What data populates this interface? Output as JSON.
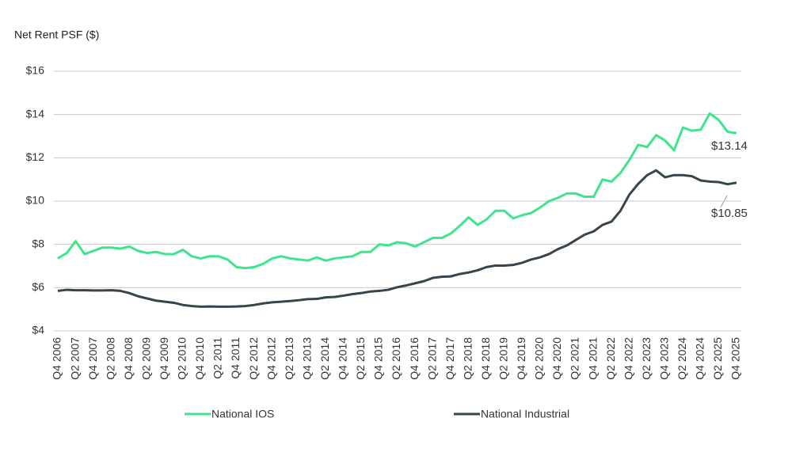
{
  "chart_data": {
    "type": "line",
    "y_label": "Net Rent PSF ($)",
    "categories": [
      "Q4 2006",
      null,
      "Q2 2007",
      null,
      "Q4 2007",
      null,
      "Q2 2008",
      null,
      "Q4 2008",
      null,
      "Q2 2009",
      null,
      "Q4 2009",
      null,
      "Q2 2010",
      null,
      "Q4 2010",
      null,
      "Q2 2011",
      null,
      "Q4 2011",
      null,
      "Q2 2012",
      null,
      "Q4 2012",
      null,
      "Q2 2013",
      null,
      "Q4 2013",
      null,
      "Q2 2014",
      null,
      "Q4 2014",
      null,
      "Q2 2015",
      null,
      "Q4 2015",
      null,
      "Q2 2016",
      null,
      "Q4 2016",
      null,
      "Q2 2017",
      null,
      "Q4 2017",
      null,
      "Q2 2018",
      null,
      "Q4 2018",
      null,
      "Q2 2019",
      null,
      "Q4 2019",
      null,
      "Q2 2020",
      null,
      "Q4 2020",
      null,
      "Q2 2021",
      null,
      "Q4 2021",
      null,
      "Q2 2022",
      null,
      "Q4 2022",
      null,
      "Q2 2023",
      null,
      "Q4 2023",
      null,
      "Q2 2024",
      null,
      "Q4 2024",
      null,
      "Q2 2025",
      null,
      "Q4 2025"
    ],
    "series": [
      {
        "name": "National IOS",
        "color": "#3fe58c",
        "values": [
          7.35,
          7.6,
          8.15,
          7.55,
          7.7,
          7.85,
          7.85,
          7.8,
          7.9,
          7.7,
          7.6,
          7.65,
          7.55,
          7.55,
          7.75,
          7.45,
          7.35,
          7.45,
          7.45,
          7.3,
          6.95,
          6.9,
          6.95,
          7.1,
          7.35,
          7.45,
          7.35,
          7.3,
          7.25,
          7.4,
          7.25,
          7.35,
          7.4,
          7.45,
          7.65,
          7.65,
          8.0,
          7.95,
          8.1,
          8.05,
          7.9,
          8.1,
          8.3,
          8.3,
          8.5,
          8.85,
          9.25,
          8.9,
          9.15,
          9.55,
          9.55,
          9.2,
          9.35,
          9.45,
          9.7,
          10.0,
          10.15,
          10.35,
          10.35,
          10.2,
          10.2,
          11.0,
          10.9,
          11.3,
          11.9,
          12.6,
          12.5,
          13.05,
          12.8,
          12.35,
          13.4,
          13.25,
          13.3,
          14.05,
          13.75,
          13.2,
          13.14
        ],
        "value_labels": [
          null,
          null,
          null,
          null,
          null,
          null,
          null,
          null,
          null,
          null,
          null,
          null,
          null,
          null,
          null,
          null,
          null,
          null,
          null,
          null,
          null,
          null,
          null,
          null,
          null,
          null,
          null,
          null,
          null,
          null,
          null,
          null,
          null,
          null,
          null,
          null,
          null,
          null,
          null,
          null,
          null,
          null,
          null,
          null,
          null,
          null,
          null,
          null,
          null,
          null,
          null,
          null,
          null,
          null,
          null,
          null,
          null,
          null,
          null,
          null,
          null,
          null,
          null,
          null,
          null,
          null,
          null,
          null,
          null,
          null,
          null,
          null,
          null,
          null,
          null,
          null,
          "$13.14"
        ]
      },
      {
        "name": "National Industrial",
        "color": "#37444b",
        "values": [
          5.85,
          5.9,
          5.88,
          5.88,
          5.87,
          5.87,
          5.88,
          5.85,
          5.75,
          5.6,
          5.5,
          5.4,
          5.35,
          5.3,
          5.2,
          5.15,
          5.12,
          5.13,
          5.12,
          5.12,
          5.13,
          5.15,
          5.2,
          5.27,
          5.32,
          5.35,
          5.38,
          5.42,
          5.47,
          5.48,
          5.55,
          5.57,
          5.63,
          5.7,
          5.75,
          5.82,
          5.85,
          5.9,
          6.02,
          6.1,
          6.2,
          6.3,
          6.45,
          6.5,
          6.52,
          6.63,
          6.7,
          6.8,
          6.95,
          7.02,
          7.02,
          7.05,
          7.15,
          7.3,
          7.4,
          7.55,
          7.78,
          7.95,
          8.2,
          8.45,
          8.6,
          8.9,
          9.05,
          9.55,
          10.3,
          10.8,
          11.2,
          11.42,
          11.1,
          11.2,
          11.2,
          11.15,
          10.95,
          10.9,
          10.88,
          10.78,
          10.85
        ],
        "value_labels": [
          null,
          null,
          null,
          null,
          null,
          null,
          null,
          null,
          null,
          null,
          null,
          null,
          null,
          null,
          null,
          null,
          null,
          null,
          null,
          null,
          null,
          null,
          null,
          null,
          null,
          null,
          null,
          null,
          null,
          null,
          null,
          null,
          null,
          null,
          null,
          null,
          null,
          null,
          null,
          null,
          null,
          null,
          null,
          null,
          null,
          null,
          null,
          null,
          null,
          null,
          null,
          null,
          null,
          null,
          null,
          null,
          null,
          null,
          null,
          null,
          null,
          null,
          null,
          null,
          null,
          null,
          null,
          null,
          null,
          null,
          null,
          null,
          null,
          null,
          null,
          null,
          "$10.85"
        ]
      }
    ],
    "ylim": [
      4,
      16
    ],
    "yticks": [
      {
        "value": 4,
        "label": "$4"
      },
      {
        "value": 6,
        "label": "$6"
      },
      {
        "value": 8,
        "label": "$8"
      },
      {
        "value": 10,
        "label": "$10"
      },
      {
        "value": 12,
        "label": "$12"
      },
      {
        "value": 14,
        "label": "$14"
      },
      {
        "value": 16,
        "label": "$16"
      }
    ],
    "grid": true,
    "legend": "bottom"
  }
}
